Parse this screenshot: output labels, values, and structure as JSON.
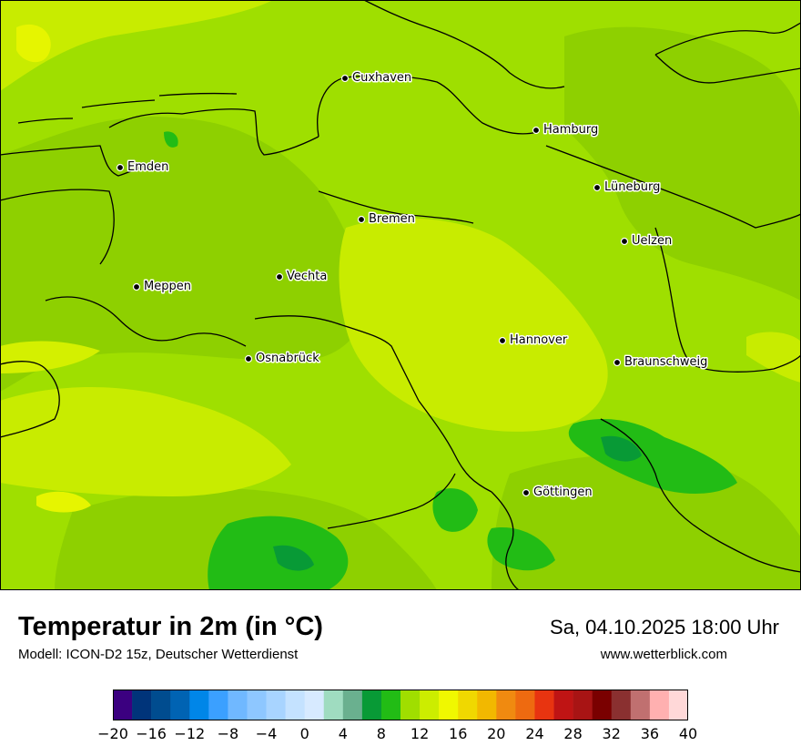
{
  "map": {
    "title": "Temperatur in 2m (in °C)",
    "model": "Modell: ICON-D2 15z, Deutscher Wetterdienst",
    "datetime": "Sa, 04.10.2025 18:00 Uhr",
    "website": "www.wetterblick.com",
    "cities": [
      {
        "name": "Cuxhaven"
      },
      {
        "name": "Hamburg"
      },
      {
        "name": "Emden"
      },
      {
        "name": "Lüneburg"
      },
      {
        "name": "Bremen"
      },
      {
        "name": "Uelzen"
      },
      {
        "name": "Vechta"
      },
      {
        "name": "Meppen"
      },
      {
        "name": "Hannover"
      },
      {
        "name": "Osnabrück"
      },
      {
        "name": "Braunschweig"
      },
      {
        "name": "Göttingen"
      }
    ]
  },
  "colorscale": {
    "min": -20,
    "max": 40,
    "step": 2,
    "tick_labels": [
      "−20",
      "−16",
      "−12",
      "−8",
      "−4",
      "0",
      "4",
      "8",
      "12",
      "16",
      "20",
      "24",
      "28",
      "32",
      "36",
      "40"
    ],
    "colors": [
      "#3b0080",
      "#00347a",
      "#004c8f",
      "#0063b3",
      "#0086e8",
      "#3ba0ff",
      "#70b8ff",
      "#8ec7ff",
      "#a8d4ff",
      "#c4e2ff",
      "#d7eaff",
      "#9fdcc0",
      "#6ab08f",
      "#089a36",
      "#22bc15",
      "#a0de00",
      "#cced00",
      "#f0f800",
      "#f0d800",
      "#f2b800",
      "#f08a10",
      "#ee6a10",
      "#e83410",
      "#bf1414",
      "#a81414",
      "#7a0000",
      "#8a3030",
      "#c07070",
      "#ffb0b0",
      "#ffd8d8"
    ]
  }
}
